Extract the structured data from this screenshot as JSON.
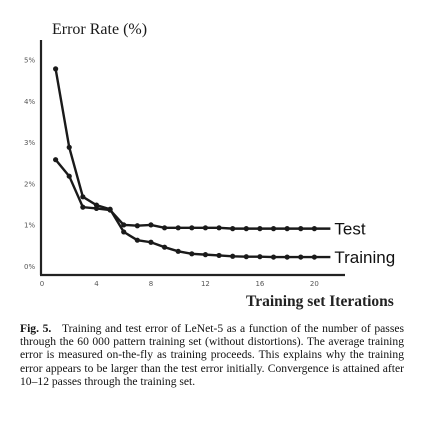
{
  "chart_data": {
    "type": "line",
    "title": "Error Rate (%)",
    "xlabel": "Training set Iterations",
    "ylabel": "",
    "xlim": [
      0,
      21
    ],
    "ylim": [
      0,
      5.5
    ],
    "xticks": [
      0,
      4,
      8,
      12,
      16,
      20
    ],
    "yticks": [
      0,
      1,
      2,
      3,
      4,
      5
    ],
    "xtick_labels": [
      "0",
      "4",
      "8",
      "12",
      "16",
      "20"
    ],
    "ytick_labels": [
      "0%",
      "1%",
      "2%",
      "3%",
      "4%",
      "5%"
    ],
    "grid": false,
    "series": [
      {
        "name": "Test",
        "x": [
          1,
          2,
          3,
          4,
          5,
          6,
          7,
          8,
          9,
          10,
          11,
          12,
          13,
          14,
          15,
          16,
          17,
          18,
          19,
          20
        ],
        "values": [
          2.6,
          2.2,
          1.45,
          1.42,
          1.38,
          1.02,
          1.0,
          1.02,
          0.95,
          0.95,
          0.95,
          0.95,
          0.95,
          0.93,
          0.93,
          0.93,
          0.93,
          0.93,
          0.93,
          0.93
        ]
      },
      {
        "name": "Training",
        "x": [
          1,
          2,
          3,
          4,
          5,
          6,
          7,
          8,
          9,
          10,
          11,
          12,
          13,
          14,
          15,
          16,
          17,
          18,
          19,
          20
        ],
        "values": [
          4.8,
          2.9,
          1.7,
          1.5,
          1.4,
          0.85,
          0.65,
          0.6,
          0.48,
          0.38,
          0.32,
          0.3,
          0.28,
          0.26,
          0.25,
          0.25,
          0.24,
          0.24,
          0.24,
          0.24
        ]
      }
    ]
  },
  "caption": {
    "label": "Fig. 5.",
    "text": "Training and test error of LeNet-5 as a function of the number of passes through the 60 000 pattern training set (without distortions). The average training error is measured on-the-fly as training proceeds. This explains why the training error appears to be larger than the test error initially. Convergence is attained after 10–12 passes through the training set."
  }
}
